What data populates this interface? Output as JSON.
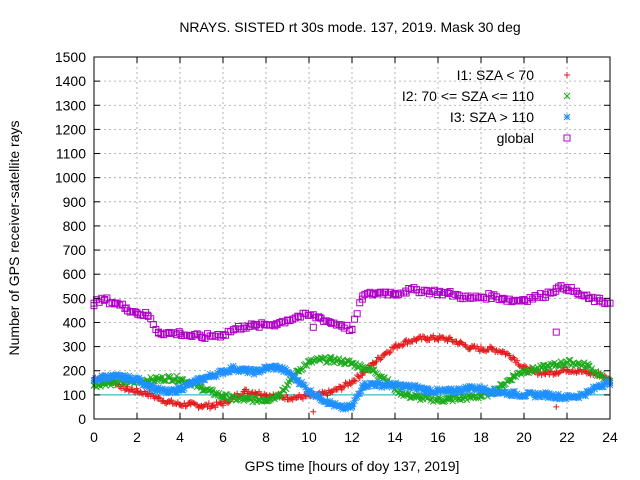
{
  "chart_data": {
    "type": "scatter",
    "title": "NRAYS. SISTED rt 30s mode. 137, 2019. Mask 30 deg",
    "xlabel": "GPS time [hours of doy 137, 2019]",
    "ylabel": "Number of GPS receiver-satellite rays",
    "xlim": [
      0,
      24
    ],
    "ylim": [
      0,
      1500
    ],
    "xticks": [
      0,
      2,
      4,
      6,
      8,
      10,
      12,
      14,
      16,
      18,
      20,
      22,
      24
    ],
    "yticks": [
      0,
      100,
      200,
      300,
      400,
      500,
      600,
      700,
      800,
      900,
      1000,
      1100,
      1200,
      1300,
      1400,
      1500
    ],
    "grid": true,
    "legend_position": "top-right",
    "reference_line": {
      "y": 100,
      "color": "#00b0c0"
    },
    "series": [
      {
        "name": "I1: SZA < 70",
        "marker": "+",
        "color": "#e41a1c",
        "x": [
          0,
          0.5,
          1,
          1.5,
          2,
          2.5,
          3,
          3.5,
          4,
          4.5,
          5,
          5.5,
          6,
          6.5,
          7,
          7.5,
          8,
          8.5,
          9,
          9.5,
          10,
          10.5,
          11,
          11.5,
          12,
          12.5,
          13,
          13.5,
          14,
          14.5,
          15,
          15.5,
          16,
          16.5,
          17,
          17.5,
          18,
          18.5,
          19,
          19.5,
          20,
          20.5,
          21,
          21.5,
          22,
          22.5,
          23,
          23.5,
          24
        ],
        "values": [
          170,
          175,
          150,
          125,
          115,
          105,
          85,
          70,
          60,
          60,
          55,
          55,
          65,
          90,
          115,
          110,
          100,
          95,
          90,
          90,
          95,
          100,
          110,
          130,
          155,
          190,
          230,
          270,
          300,
          320,
          330,
          335,
          335,
          330,
          315,
          295,
          290,
          290,
          280,
          255,
          210,
          195,
          190,
          195,
          205,
          200,
          190,
          185,
          160
        ]
      },
      {
        "name": "I2: 70 <= SZA <= 110",
        "marker": "x",
        "color": "#1aaa1a",
        "x": [
          0,
          0.5,
          1,
          1.5,
          2,
          2.5,
          3,
          3.5,
          4,
          4.5,
          5,
          5.5,
          6,
          6.5,
          7,
          7.5,
          8,
          8.5,
          9,
          9.5,
          10,
          10.5,
          11,
          11.5,
          12,
          12.5,
          13,
          13.5,
          14,
          14.5,
          15,
          15.5,
          16,
          16.5,
          17,
          17.5,
          18,
          18.5,
          19,
          19.5,
          20,
          20.5,
          21,
          21.5,
          22,
          22.5,
          23,
          23.5,
          24
        ],
        "values": [
          140,
          150,
          150,
          155,
          155,
          160,
          165,
          170,
          165,
          150,
          130,
          110,
          95,
          85,
          80,
          80,
          80,
          95,
          140,
          200,
          235,
          245,
          245,
          240,
          230,
          215,
          200,
          170,
          125,
          100,
          90,
          85,
          80,
          80,
          85,
          90,
          95,
          110,
          140,
          175,
          200,
          205,
          215,
          225,
          235,
          230,
          220,
          180,
          150
        ]
      },
      {
        "name": "I3: SZA > 110",
        "marker": "*",
        "color": "#1e90ff",
        "x": [
          0,
          0.5,
          1,
          1.5,
          2,
          2.5,
          3,
          3.5,
          4,
          4.5,
          5,
          5.5,
          6,
          6.5,
          7,
          7.5,
          8,
          8.5,
          9,
          9.5,
          10,
          10.5,
          11,
          11.5,
          12,
          12.5,
          13,
          13.5,
          14,
          14.5,
          15,
          15.5,
          16,
          16.5,
          17,
          17.5,
          18,
          18.5,
          19,
          19.5,
          20,
          20.5,
          21,
          21.5,
          22,
          22.5,
          23,
          23.5,
          24
        ],
        "values": [
          160,
          175,
          175,
          170,
          165,
          140,
          120,
          110,
          125,
          145,
          165,
          180,
          195,
          210,
          200,
          195,
          210,
          215,
          195,
          160,
          115,
          90,
          65,
          45,
          50,
          140,
          145,
          140,
          140,
          135,
          130,
          120,
          115,
          115,
          120,
          130,
          125,
          115,
          110,
          105,
          100,
          100,
          100,
          95,
          90,
          95,
          110,
          140,
          150
        ]
      },
      {
        "name": "global",
        "marker": "square",
        "color": "#b000c8",
        "x": [
          0,
          0.5,
          1,
          1.5,
          2,
          2.5,
          3,
          3.5,
          4,
          4.5,
          5,
          5.5,
          6,
          6.5,
          7,
          7.5,
          8,
          8.5,
          9,
          9.5,
          10,
          10.5,
          11,
          11.5,
          12,
          12.5,
          13,
          13.5,
          14,
          14.5,
          15,
          15.5,
          16,
          16.5,
          17,
          17.5,
          18,
          18.5,
          19,
          19.5,
          20,
          20.5,
          21,
          21.5,
          22,
          22.5,
          23,
          23.5,
          24
        ],
        "values": [
          480,
          495,
          480,
          460,
          440,
          430,
          360,
          355,
          355,
          345,
          340,
          345,
          350,
          370,
          385,
          385,
          390,
          395,
          410,
          425,
          430,
          420,
          400,
          390,
          370,
          510,
          520,
          525,
          520,
          530,
          535,
          530,
          525,
          520,
          510,
          500,
          505,
          510,
          500,
          490,
          495,
          505,
          515,
          540,
          545,
          520,
          500,
          490,
          480
        ]
      }
    ],
    "outliers": [
      {
        "series": "I1: SZA < 70",
        "x": 10.2,
        "y": 30
      },
      {
        "series": "I1: SZA < 70",
        "x": 21.5,
        "y": 50
      },
      {
        "series": "global",
        "x": 10.2,
        "y": 380
      },
      {
        "series": "global",
        "x": 21.5,
        "y": 360
      }
    ]
  }
}
